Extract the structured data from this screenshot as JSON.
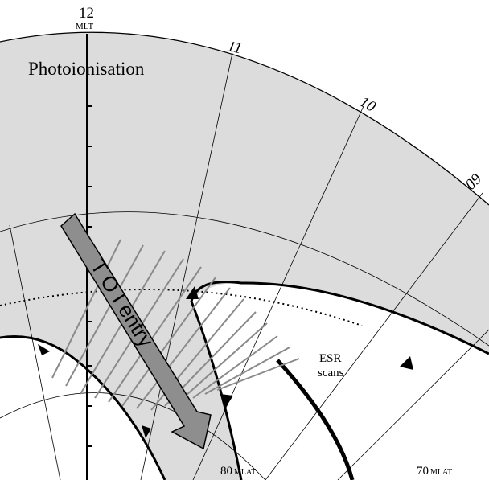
{
  "noon_label": "12",
  "noon_unit": "MLT",
  "hour_labels": [
    "11",
    "10",
    "09"
  ],
  "region_label": "Photoionisation",
  "arrow_label": "T O I  entry",
  "scan_label_line1": "ESR",
  "scan_label_line2": "scans",
  "lat80_value": "80",
  "lat80_unit": "MLAT",
  "lat70_value": "70",
  "lat70_unit": "MLAT",
  "colors": {
    "shade": "#dcdcdc",
    "arrow_fill": "#8e8e8e",
    "scan_lines": "#8a8a8a",
    "grid": "#000000"
  }
}
